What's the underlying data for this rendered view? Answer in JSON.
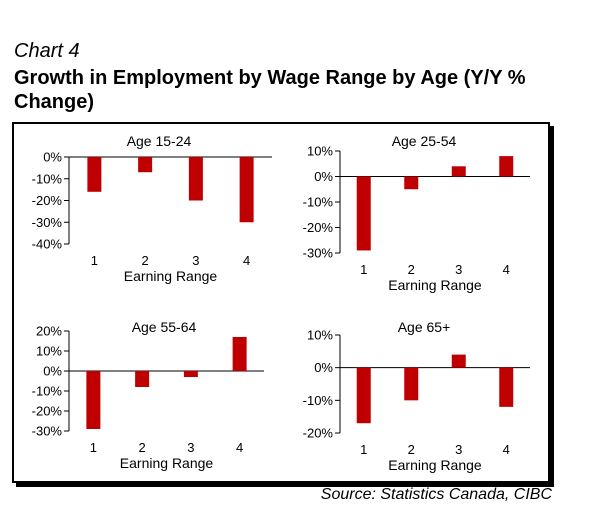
{
  "header": {
    "chart_label": "Chart 4",
    "title": "Growth in Employment by Wage Range by Age (Y/Y % Change)"
  },
  "source": "Source: Statistics Canada, CIBC",
  "colors": {
    "bar": "#c00000"
  },
  "chart_data": [
    {
      "type": "bar",
      "title": "Age 15-24",
      "categories": [
        "1",
        "2",
        "3",
        "4"
      ],
      "values": [
        -16,
        -7,
        -20,
        -30
      ],
      "xlabel": "Earning Range",
      "ylabel": "",
      "ylim": [
        -40,
        0
      ],
      "yticks": [
        0,
        -10,
        -20,
        -30,
        -40
      ],
      "ytick_labels": [
        "0%",
        "-10%",
        "-20%",
        "-30%",
        "-40%"
      ],
      "grid": false
    },
    {
      "type": "bar",
      "title": "Age 25-54",
      "categories": [
        "1",
        "2",
        "3",
        "4"
      ],
      "values": [
        -29,
        -5,
        4,
        8
      ],
      "xlabel": "Earning Range",
      "ylabel": "",
      "ylim": [
        -30,
        10
      ],
      "yticks": [
        10,
        0,
        -10,
        -20,
        -30
      ],
      "ytick_labels": [
        "10%",
        "0%",
        "-10%",
        "-20%",
        "-30%"
      ],
      "grid": false
    },
    {
      "type": "bar",
      "title": "Age 55-64",
      "categories": [
        "1",
        "2",
        "3",
        "4"
      ],
      "values": [
        -29,
        -8,
        -3,
        17
      ],
      "xlabel": "Earning Range",
      "ylabel": "",
      "ylim": [
        -30,
        20
      ],
      "yticks": [
        20,
        10,
        0,
        -10,
        -20,
        -30
      ],
      "ytick_labels": [
        "20%",
        "10%",
        "0%",
        "-10%",
        "-20%",
        "-30%"
      ],
      "grid": false
    },
    {
      "type": "bar",
      "title": "Age 65+",
      "categories": [
        "1",
        "2",
        "3",
        "4"
      ],
      "values": [
        -17,
        -10,
        4,
        -12
      ],
      "xlabel": "Earning Range",
      "ylabel": "",
      "ylim": [
        -20,
        10
      ],
      "yticks": [
        10,
        0,
        -10,
        -20
      ],
      "ytick_labels": [
        "10%",
        "0%",
        "-10%",
        "-20%"
      ],
      "grid": false
    }
  ]
}
